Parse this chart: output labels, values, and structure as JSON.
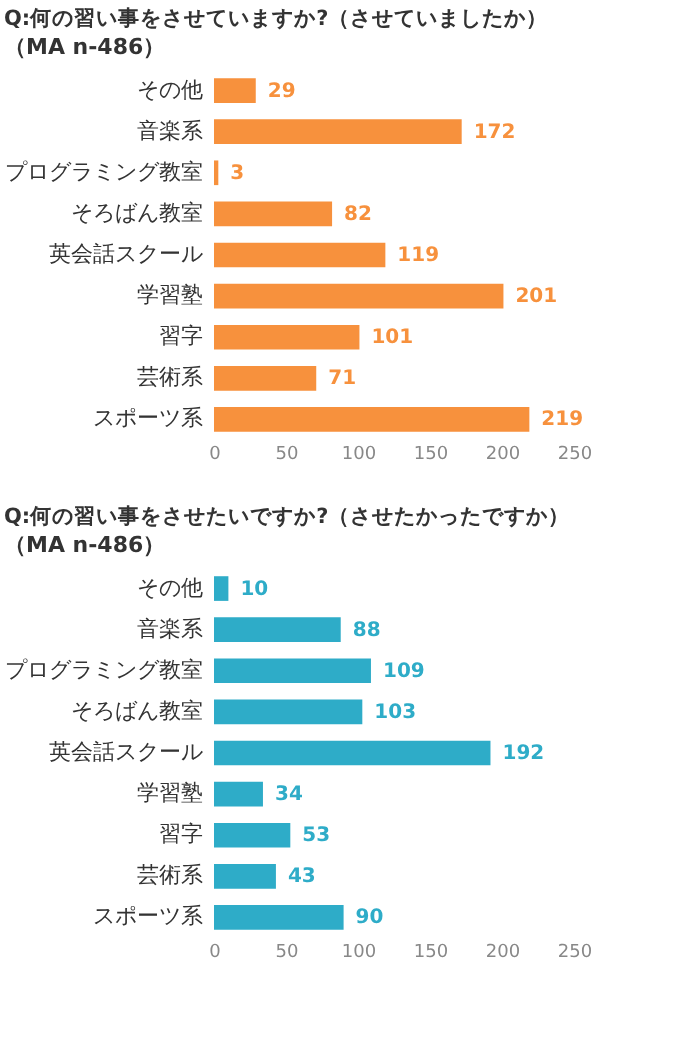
{
  "chart_data": [
    {
      "type": "bar",
      "orientation": "horizontal",
      "title": "Q:何の習い事をさせていますか?（させていましたか）",
      "subtitle": "（MA n-486）",
      "categories": [
        "その他",
        "音楽系",
        "プログラミング教室",
        "そろばん教室",
        "英会話スクール",
        "学習塾",
        "習字",
        "芸術系",
        "スポーツ系"
      ],
      "values": [
        29,
        172,
        3,
        82,
        119,
        201,
        101,
        71,
        219
      ],
      "color": "#f7913d",
      "xlim": [
        0,
        250
      ],
      "xticks": [
        0,
        50,
        100,
        150,
        200,
        250
      ],
      "data_labels": true,
      "grid": false
    },
    {
      "type": "bar",
      "orientation": "horizontal",
      "title": "Q:何の習い事をさせたいですか?（させたかったですか）",
      "subtitle": "（MA n-486）",
      "categories": [
        "その他",
        "音楽系",
        "プログラミング教室",
        "そろばん教室",
        "英会話スクール",
        "学習塾",
        "習字",
        "芸術系",
        "スポーツ系"
      ],
      "values": [
        10,
        88,
        109,
        103,
        192,
        34,
        53,
        43,
        90
      ],
      "color": "#2eacc8",
      "xlim": [
        0,
        250
      ],
      "xticks": [
        0,
        50,
        100,
        150,
        200,
        250
      ],
      "data_labels": true,
      "grid": false
    }
  ]
}
